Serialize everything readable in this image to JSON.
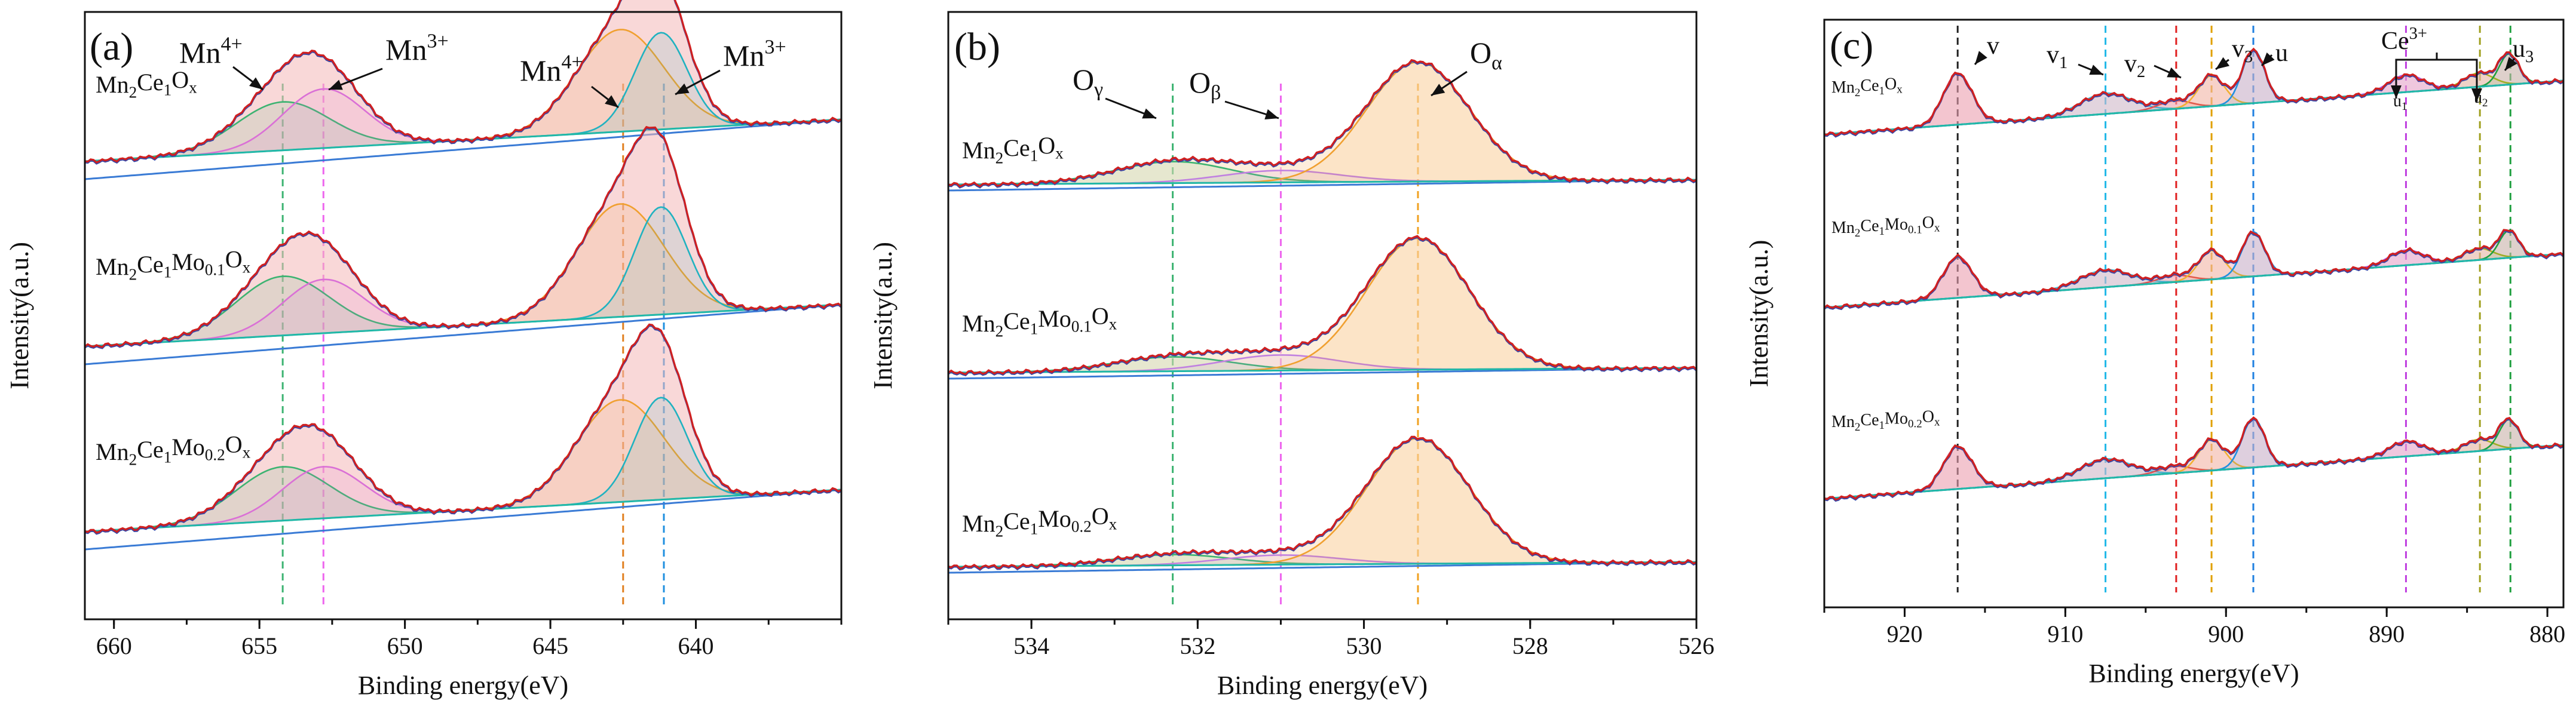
{
  "chart_data": [
    {
      "type": "line",
      "panel_tag": "(a)",
      "xlabel": "Binding energy(eV)",
      "ylabel": "Intensity(a.u.)",
      "x_reversed": true,
      "xlim": [
        661,
        635
      ],
      "xticks": [
        660,
        655,
        650,
        645,
        640
      ],
      "xtick_labels": [
        "660",
        "655",
        "650",
        "645",
        "640"
      ],
      "samples": [
        {
          "label_base": "Mn",
          "label_sub1": "2",
          "label_mid": "Ce",
          "label_sub2": "1",
          "label_mid2": "",
          "label_sub3": "",
          "label_end": "O",
          "label_sub4": "x"
        },
        {
          "label_base": "Mn",
          "label_sub1": "2",
          "label_mid": "Ce",
          "label_sub2": "1",
          "label_mid2": "Mo",
          "label_sub3": "0.1",
          "label_end": "O",
          "label_sub4": "x"
        },
        {
          "label_base": "Mn",
          "label_sub1": "2",
          "label_mid": "Ce",
          "label_sub2": "1",
          "label_mid2": "Mo",
          "label_sub3": "0.2",
          "label_end": "O",
          "label_sub4": "x"
        }
      ],
      "peaks": [
        {
          "name": "Mn4+ 2p1/2",
          "center": 654.2,
          "width": 1.6,
          "amps": [
            0.45,
            0.55,
            0.5
          ],
          "color": "#3cb371"
        },
        {
          "name": "Mn3+ 2p1/2",
          "center": 652.8,
          "width": 1.4,
          "amps": [
            0.55,
            0.5,
            0.48
          ],
          "color": "#da70d6"
        },
        {
          "name": "Mn4+ 2p3/2",
          "center": 642.6,
          "width": 1.5,
          "amps": [
            0.95,
            1.05,
            0.95
          ],
          "color": "#f0a030"
        },
        {
          "name": "Mn3+ 2p3/2",
          "center": 641.2,
          "width": 0.9,
          "amps": [
            0.9,
            1.0,
            0.95
          ],
          "color": "#20b2c0"
        }
      ],
      "ref_lines": [
        {
          "x": 654.2,
          "color": "#3cb371"
        },
        {
          "x": 652.8,
          "color": "#ee66ee"
        },
        {
          "x": 642.5,
          "color": "#e08020"
        },
        {
          "x": 641.1,
          "color": "#2090e0"
        }
      ],
      "annotations": [
        {
          "base": "Mn",
          "sup": "4+"
        },
        {
          "base": "Mn",
          "sup": "3+"
        },
        {
          "base": "Mn",
          "sup": "4+"
        },
        {
          "base": "Mn",
          "sup": "3+"
        }
      ],
      "fill_color": "#f4b8b8",
      "envelope_color": "#d02020"
    },
    {
      "type": "line",
      "panel_tag": "(b)",
      "xlabel": "Binding energy(eV)",
      "ylabel": "Intensity(a.u.)",
      "x_reversed": true,
      "xlim": [
        535,
        526
      ],
      "xticks": [
        534,
        532,
        530,
        528,
        526
      ],
      "xtick_labels": [
        "534",
        "532",
        "530",
        "528",
        "526"
      ],
      "samples": [
        {
          "label_base": "Mn",
          "label_sub1": "2",
          "label_mid": "Ce",
          "label_sub2": "1",
          "label_mid2": "",
          "label_sub3": "",
          "label_end": "O",
          "label_sub4": "x"
        },
        {
          "label_base": "Mn",
          "label_sub1": "2",
          "label_mid": "Ce",
          "label_sub2": "1",
          "label_mid2": "Mo",
          "label_sub3": "0.1",
          "label_end": "O",
          "label_sub4": "x"
        },
        {
          "label_base": "Mn",
          "label_sub1": "2",
          "label_mid": "Ce",
          "label_sub2": "1",
          "label_mid2": "Mo",
          "label_sub3": "0.2",
          "label_end": "O",
          "label_sub4": "x"
        }
      ],
      "peaks": [
        {
          "name": "O gamma",
          "center": 532.3,
          "width": 0.7,
          "amps": [
            0.18,
            0.12,
            0.09
          ],
          "color": "#3cb371"
        },
        {
          "name": "O beta",
          "center": 531.0,
          "width": 0.7,
          "amps": [
            0.1,
            0.13,
            0.08
          ],
          "color": "#c080e0"
        },
        {
          "name": "O alpha",
          "center": 529.35,
          "width": 0.62,
          "amps": [
            1.0,
            1.1,
            1.05
          ],
          "color": "#f0a030"
        }
      ],
      "ref_lines": [
        {
          "x": 532.3,
          "color": "#3cb371"
        },
        {
          "x": 531.0,
          "color": "#ee66ee"
        },
        {
          "x": 529.35,
          "color": "#f0a020"
        }
      ],
      "annotations": [
        {
          "base": "O",
          "sub": "γ"
        },
        {
          "base": "O",
          "sub": "β"
        },
        {
          "base": "O",
          "sub": "α"
        }
      ],
      "fill_color": "#fde0c0",
      "envelope_color": "#d02020"
    },
    {
      "type": "line",
      "panel_tag": "(c)",
      "xlabel": "Binding energy(eV)",
      "ylabel": "Intensity(a.u.)",
      "x_reversed": true,
      "xlim": [
        925,
        879
      ],
      "xticks": [
        920,
        910,
        900,
        890,
        880
      ],
      "xtick_labels": [
        "920",
        "910",
        "900",
        "890",
        "880"
      ],
      "samples": [
        {
          "label_base": "Mn",
          "label_sub1": "2",
          "label_mid": "Ce",
          "label_sub2": "1",
          "label_mid2": "",
          "label_sub3": "",
          "label_end": "O",
          "label_sub4": "x"
        },
        {
          "label_base": "Mn",
          "label_sub1": "2",
          "label_mid": "Ce",
          "label_sub2": "1",
          "label_mid2": "Mo",
          "label_sub3": "0.1",
          "label_end": "O",
          "label_sub4": "x"
        },
        {
          "label_base": "Mn",
          "label_sub1": "2",
          "label_mid": "Ce",
          "label_sub2": "1",
          "label_mid2": "Mo",
          "label_sub3": "0.2",
          "label_end": "O",
          "label_sub4": "x"
        }
      ],
      "peaks": [
        {
          "name": "v",
          "center": 916.7,
          "width": 0.9,
          "amps": [
            0.75,
            0.6,
            0.62
          ],
          "color": "#d04060"
        },
        {
          "name": "v1",
          "center": 907.5,
          "width": 1.6,
          "amps": [
            0.3,
            0.25,
            0.28
          ],
          "color": "#40c0e0"
        },
        {
          "name": "v2",
          "center": 903.2,
          "width": 1.0,
          "amps": [
            0.12,
            0.1,
            0.1
          ],
          "color": "#e05050"
        },
        {
          "name": "v3",
          "center": 900.9,
          "width": 0.8,
          "amps": [
            0.45,
            0.42,
            0.45
          ],
          "color": "#f0b030"
        },
        {
          "name": "u",
          "center": 898.3,
          "width": 0.7,
          "amps": [
            0.78,
            0.65,
            0.72
          ],
          "color": "#2090e0"
        },
        {
          "name": "u1",
          "center": 888.8,
          "width": 1.1,
          "amps": [
            0.25,
            0.22,
            0.22
          ],
          "color": "#b050e0"
        },
        {
          "name": "u2",
          "center": 884.3,
          "width": 0.9,
          "amps": [
            0.2,
            0.17,
            0.17
          ],
          "color": "#b0b020"
        },
        {
          "name": "u3",
          "center": 882.4,
          "width": 0.6,
          "amps": [
            0.45,
            0.4,
            0.43
          ],
          "color": "#20a040"
        }
      ],
      "ref_lines": [
        {
          "x": 916.7,
          "color": "#222222"
        },
        {
          "x": 907.5,
          "color": "#20b8e8"
        },
        {
          "x": 903.1,
          "color": "#e02020"
        },
        {
          "x": 900.9,
          "color": "#e0a000"
        },
        {
          "x": 898.3,
          "color": "#2080e0"
        },
        {
          "x": 888.8,
          "color": "#c040e0"
        },
        {
          "x": 884.2,
          "color": "#a0a020"
        },
        {
          "x": 882.3,
          "color": "#20a040"
        }
      ],
      "annotations": [
        {
          "base": "v"
        },
        {
          "base": "v",
          "sub": "1"
        },
        {
          "base": "v",
          "sub": "2"
        },
        {
          "base": "v",
          "sub": "3"
        },
        {
          "base": "u"
        },
        {
          "base": "Ce",
          "sup": "3+"
        },
        {
          "base": "u",
          "sub": "3"
        },
        {
          "base": "u",
          "sub": "1"
        },
        {
          "base": "u",
          "sub": "2"
        }
      ],
      "fill_color": "#f4b8c4",
      "envelope_color": "#d02020"
    }
  ]
}
